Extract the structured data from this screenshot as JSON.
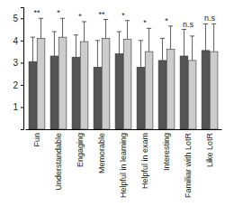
{
  "chart_data": {
    "type": "bar",
    "categories": [
      "Fun",
      "Understandable",
      "Engaging",
      "Memorable",
      "Helpful in learning",
      "Helpful in exam",
      "Interesting",
      "Familiar with LotR",
      "Like LotR"
    ],
    "series": [
      {
        "color": "#555555",
        "values": [
          3.05,
          3.3,
          3.25,
          2.8,
          3.4,
          2.8,
          3.1,
          3.3,
          3.55
        ],
        "errors": [
          1.1,
          1.1,
          1.0,
          1.2,
          1.0,
          1.2,
          1.0,
          1.2,
          1.2
        ]
      },
      {
        "color": "#cccccc",
        "values": [
          4.1,
          4.15,
          3.95,
          4.1,
          4.05,
          3.5,
          3.6,
          3.1,
          3.5
        ],
        "errors": [
          0.9,
          0.85,
          0.9,
          0.85,
          0.85,
          1.05,
          1.05,
          1.1,
          1.25
        ]
      }
    ],
    "annotations": [
      "**",
      "*",
      "*",
      "**",
      "*",
      "*",
      "*",
      "n.s",
      "n.s"
    ],
    "ylim": [
      0,
      5.5
    ],
    "yticks": [
      1,
      2,
      3,
      4,
      5
    ]
  }
}
